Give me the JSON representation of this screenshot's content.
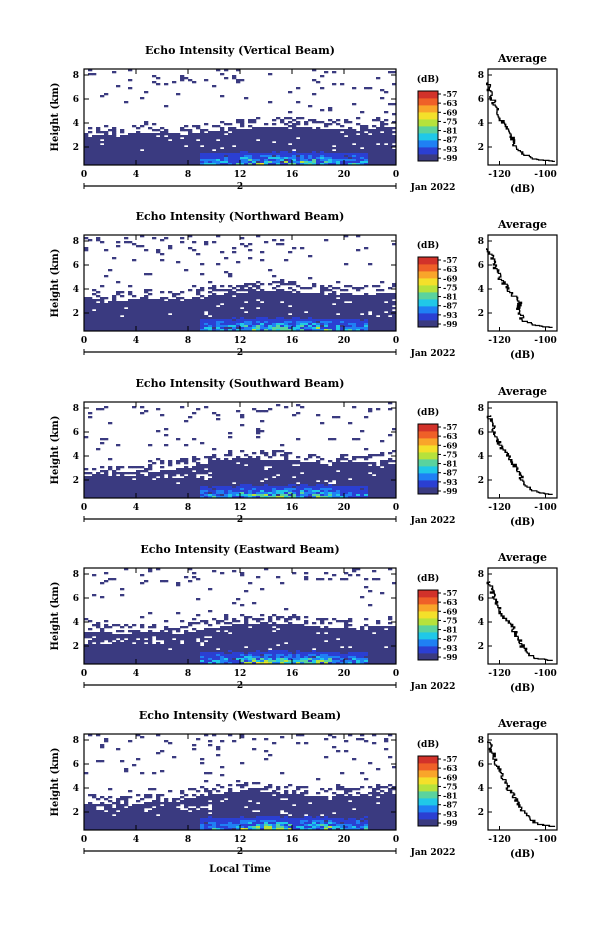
{
  "figure": {
    "xlabel": "Local Time",
    "date_label": "Jan 2022",
    "cbar_unit": "(dB)",
    "cbar_ticks": [
      "-57",
      "-63",
      "-69",
      "-75",
      "-81",
      "-87",
      "-93",
      "-99"
    ],
    "cbar_range": [
      -99,
      -57
    ],
    "cbar_colors": [
      "#3a3a80",
      "#2b3fd2",
      "#1f80f4",
      "#20c8e8",
      "#5ad39e",
      "#b6e23c",
      "#f4e02a",
      "#f9a52a",
      "#ef6028",
      "#d2322a"
    ],
    "x_ticks": [
      "0",
      "4",
      "8",
      "12",
      "16",
      "20",
      "0"
    ],
    "x_day_label": "2",
    "y_ticks": [
      "8",
      "6",
      "4",
      "2"
    ],
    "ylabel": "Height (km)",
    "avg_title": "Average",
    "avg_xticks": [
      "-120",
      "-100"
    ],
    "avg_xlabel": "(dB)",
    "avg_yticks": [
      "8",
      "6",
      "4",
      "2"
    ]
  },
  "chart_data": [
    {
      "type": "heatmap",
      "title": "Echo Intensity (Vertical Beam)",
      "xlabel": "",
      "ylabel": "Height (km)",
      "xlim_hours": [
        0,
        24
      ],
      "ylim_km": [
        0.5,
        8.5
      ],
      "value_unit": "dB",
      "color_range": [
        -99,
        -57
      ],
      "layer_top_km": [
        3.1,
        3.0,
        3.0,
        3.0,
        3.1,
        3.2,
        3.2,
        3.1,
        3.0,
        3.2,
        3.3,
        3.4,
        3.5,
        3.6,
        3.7,
        3.7,
        3.7,
        3.6,
        3.6,
        3.5,
        3.5,
        3.4,
        3.5,
        3.6,
        3.6
      ],
      "average_profile": {
        "heights_km": [
          0.8,
          1.0,
          1.5,
          2.0,
          2.5,
          3.0,
          3.5,
          4.0,
          4.5,
          5.0,
          5.5,
          6.0,
          6.5,
          7.0,
          7.5
        ],
        "values_db": [
          -96,
          -104,
          -110,
          -113,
          -114,
          -115,
          -117,
          -118,
          -120,
          -121,
          -122,
          -123,
          -124,
          -125,
          -125
        ],
        "xlim": [
          -125,
          -95
        ]
      }
    },
    {
      "type": "heatmap",
      "title": "Echo Intensity (Northward Beam)",
      "xlabel": "",
      "ylabel": "Height (km)",
      "xlim_hours": [
        0,
        24
      ],
      "ylim_km": [
        0.5,
        8.5
      ],
      "value_unit": "dB",
      "color_range": [
        -99,
        -57
      ],
      "layer_top_km": [
        3.3,
        3.2,
        3.0,
        3.0,
        3.1,
        3.2,
        3.1,
        3.0,
        3.1,
        3.3,
        3.5,
        3.6,
        3.7,
        3.8,
        3.8,
        3.8,
        3.8,
        3.7,
        3.6,
        3.5,
        3.5,
        3.4,
        3.5,
        3.6,
        3.6
      ],
      "average_profile": {
        "heights_km": [
          0.8,
          1.0,
          1.5,
          2.0,
          2.5,
          3.0,
          3.5,
          4.0,
          4.5,
          5.0,
          5.5,
          6.0,
          6.5,
          7.0,
          7.5
        ],
        "values_db": [
          -97,
          -105,
          -110,
          -111,
          -112,
          -111,
          -114,
          -116,
          -118,
          -120,
          -121,
          -122,
          -123,
          -124,
          -125
        ],
        "xlim": [
          -125,
          -95
        ]
      }
    },
    {
      "type": "heatmap",
      "title": "Echo Intensity (Southward Beam)",
      "xlabel": "",
      "ylabel": "Height (km)",
      "xlim_hours": [
        0,
        24
      ],
      "ylim_km": [
        0.5,
        8.5
      ],
      "value_unit": "dB",
      "color_range": [
        -99,
        -57
      ],
      "layer_top_km": [
        2.3,
        2.5,
        2.4,
        2.3,
        2.4,
        2.6,
        2.8,
        2.9,
        3.0,
        3.3,
        3.6,
        3.7,
        3.8,
        3.8,
        3.7,
        3.7,
        3.6,
        3.5,
        3.4,
        3.4,
        3.5,
        3.5,
        3.5,
        3.6,
        3.6
      ],
      "average_profile": {
        "heights_km": [
          0.8,
          1.0,
          1.5,
          2.0,
          2.5,
          3.0,
          3.5,
          4.0,
          4.5,
          5.0,
          5.5,
          6.0,
          6.5,
          7.0,
          7.5
        ],
        "values_db": [
          -97,
          -104,
          -108,
          -110,
          -111,
          -113,
          -114,
          -116,
          -118,
          -120,
          -121,
          -122,
          -123,
          -124,
          -125
        ],
        "xlim": [
          -125,
          -95
        ]
      }
    },
    {
      "type": "heatmap",
      "title": "Echo Intensity (Eastward Beam)",
      "xlabel": "",
      "ylabel": "Height (km)",
      "xlim_hours": [
        0,
        24
      ],
      "ylim_km": [
        0.5,
        8.5
      ],
      "value_unit": "dB",
      "color_range": [
        -99,
        -57
      ],
      "layer_top_km": [
        3.1,
        3.2,
        3.1,
        3.0,
        3.1,
        3.2,
        3.1,
        3.0,
        3.1,
        3.3,
        3.5,
        3.7,
        3.8,
        3.8,
        3.8,
        3.8,
        3.8,
        3.7,
        3.6,
        3.5,
        3.5,
        3.5,
        3.6,
        3.7,
        3.7
      ],
      "average_profile": {
        "heights_km": [
          0.8,
          1.0,
          1.5,
          2.0,
          2.5,
          3.0,
          3.5,
          4.0,
          4.5,
          5.0,
          5.5,
          6.0,
          6.5,
          7.0,
          7.5
        ],
        "values_db": [
          -97,
          -104,
          -108,
          -110,
          -111,
          -113,
          -114,
          -116,
          -118,
          -120,
          -121,
          -122,
          -123,
          -124,
          -125
        ],
        "xlim": [
          -125,
          -95
        ]
      }
    },
    {
      "type": "heatmap",
      "title": "Echo Intensity (Westward Beam)",
      "xlabel": "Local Time",
      "ylabel": "Height (km)",
      "xlim_hours": [
        0,
        24
      ],
      "ylim_km": [
        0.5,
        8.5
      ],
      "value_unit": "dB",
      "color_range": [
        -99,
        -57
      ],
      "layer_top_km": [
        2.6,
        2.7,
        2.6,
        2.5,
        2.6,
        2.8,
        2.9,
        3.0,
        3.1,
        3.3,
        3.5,
        3.6,
        3.7,
        3.8,
        3.7,
        3.6,
        3.5,
        3.4,
        3.3,
        3.3,
        3.3,
        3.3,
        3.4,
        3.5,
        3.5
      ],
      "average_profile": {
        "heights_km": [
          0.8,
          1.0,
          1.5,
          2.0,
          2.5,
          3.0,
          3.5,
          4.0,
          4.5,
          5.0,
          5.5,
          6.0,
          6.5,
          7.0,
          7.5,
          8.0
        ],
        "values_db": [
          -96,
          -103,
          -107,
          -109,
          -111,
          -113,
          -114,
          -116,
          -117,
          -119,
          -120,
          -121,
          -122,
          -123,
          -124,
          -125
        ],
        "xlim": [
          -125,
          -95
        ]
      }
    }
  ]
}
